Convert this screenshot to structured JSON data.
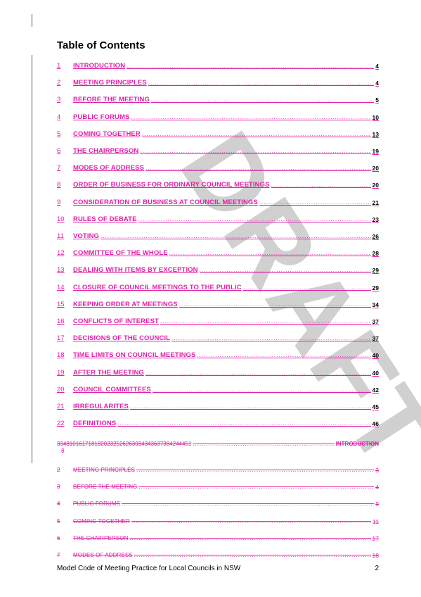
{
  "title": "Table of Contents",
  "watermark": "DRAFT",
  "toc": [
    {
      "num": "1",
      "label": "INTRODUCTION",
      "page": "4"
    },
    {
      "num": "2",
      "label": "MEETING PRINCIPLES",
      "page": "4"
    },
    {
      "num": "3",
      "label": "BEFORE THE MEETING",
      "page": "5"
    },
    {
      "num": "4",
      "label": "PUBLIC FORUMS",
      "page": "10"
    },
    {
      "num": "5",
      "label": "COMING TOGETHER",
      "page": "13"
    },
    {
      "num": "6",
      "label": "THE CHAIRPERSON",
      "page": "19"
    },
    {
      "num": "7",
      "label": "MODES OF ADDRESS",
      "page": "20"
    },
    {
      "num": "8",
      "label": "ORDER OF BUSINESS FOR ORDINARY COUNCIL MEETINGS",
      "page": "20"
    },
    {
      "num": "9",
      "label": "CONSIDERATION OF BUSINESS AT COUNCIL MEETINGS",
      "page": "21"
    },
    {
      "num": "10",
      "label": "RULES OF DEBATE",
      "page": "23"
    },
    {
      "num": "11",
      "label": "VOTING",
      "page": "26"
    },
    {
      "num": "12",
      "label": "COMMITTEE OF THE WHOLE",
      "page": "28"
    },
    {
      "num": "13",
      "label": "DEALING WITH ITEMS BY EXCEPTION",
      "page": "29"
    },
    {
      "num": "14",
      "label": "CLOSURE OF COUNCIL MEETINGS TO THE PUBLIC",
      "page": "29"
    },
    {
      "num": "15",
      "label": "KEEPING ORDER AT MEETINGS",
      "page": "34"
    },
    {
      "num": "16",
      "label": "CONFLICTS OF INTEREST",
      "page": "37"
    },
    {
      "num": "17",
      "label": "DECISIONS OF THE COUNCIL",
      "page": "37"
    },
    {
      "num": "18",
      "label": "TIME LIMITS ON COUNCIL MEETINGS",
      "page": "40"
    },
    {
      "num": "19",
      "label": "AFTER THE MEETING",
      "page": "40"
    },
    {
      "num": "20",
      "label": "COUNCIL COMMITTEES",
      "page": "42"
    },
    {
      "num": "21",
      "label": "IRREGULARITES",
      "page": "45"
    },
    {
      "num": "22",
      "label": "DEFINITIONS",
      "page": "46"
    }
  ],
  "deleted_head": {
    "nums": "3348101617181820232526263034343637384244451",
    "label": "INTRODUCTION",
    "page": "3"
  },
  "deleted_toc": [
    {
      "num": "2",
      "label": "MEETING PRINCIPLES",
      "page": "3"
    },
    {
      "num": "3",
      "label": "BEFORE THE MEETING",
      "page": "4"
    },
    {
      "num": "4",
      "label": "PUBLIC FORUMS",
      "page": "9"
    },
    {
      "num": "5",
      "label": "COMING TOGETHER",
      "page": "11"
    },
    {
      "num": "6",
      "label": "THE CHAIRPERSON",
      "page": "17"
    },
    {
      "num": "7",
      "label": "MODES OF ADDRESS",
      "page": "18"
    }
  ],
  "footer": {
    "text": "Model Code of Meeting Practice for Local Councils in NSW",
    "page": "2"
  },
  "colors": {
    "revision": "#e020a8",
    "watermark": "#c8c8c8"
  }
}
